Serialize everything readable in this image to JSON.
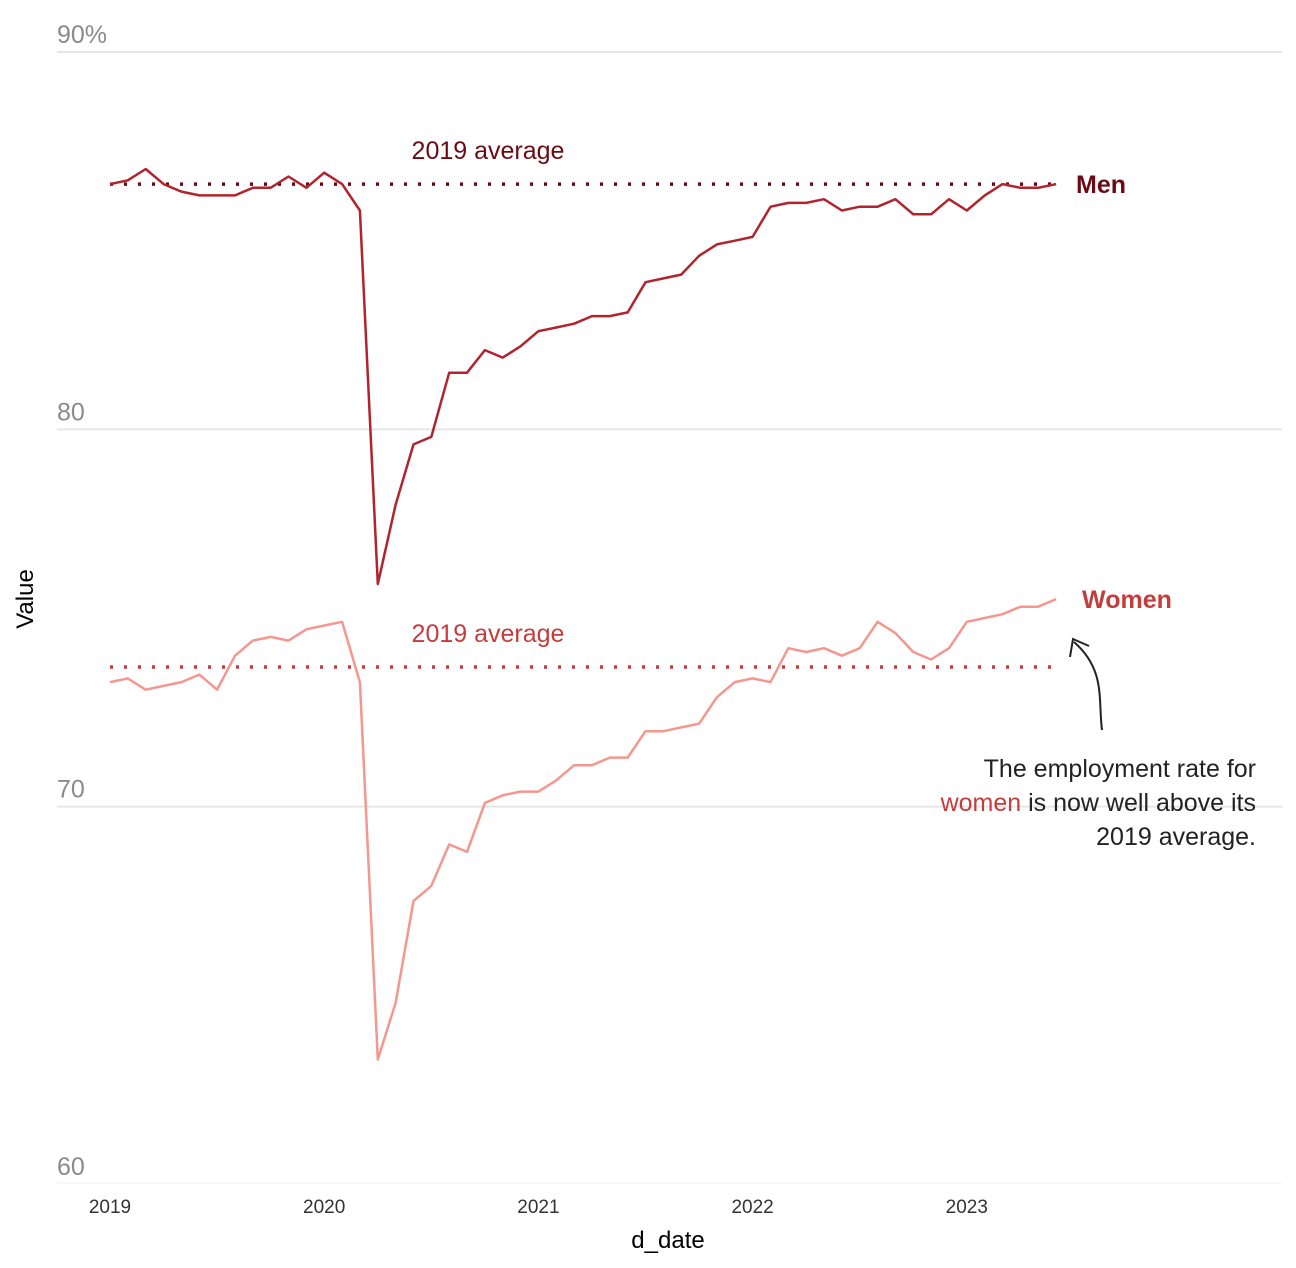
{
  "chart_data": {
    "type": "line",
    "xlabel": "d_date",
    "ylabel": "Value",
    "ylim": [
      60,
      90
    ],
    "y_ticks": [
      {
        "value": 60,
        "label": "60"
      },
      {
        "value": 70,
        "label": "70"
      },
      {
        "value": 80,
        "label": "80"
      },
      {
        "value": 90,
        "label": "90%"
      }
    ],
    "x_ticks": [
      "2019",
      "2020",
      "2021",
      "2022",
      "2023"
    ],
    "x_start": "2019-01",
    "series": [
      {
        "name": "Men",
        "color": "#b1242d",
        "label_color": "#6b0a12",
        "average": 86.5,
        "average_label": "2019 average",
        "average_color": "#6b0a12",
        "values": [
          86.5,
          86.6,
          86.9,
          86.5,
          86.3,
          86.2,
          86.2,
          86.2,
          86.4,
          86.4,
          86.7,
          86.4,
          86.8,
          86.5,
          85.8,
          75.9,
          78.0,
          79.6,
          79.8,
          81.5,
          81.5,
          82.1,
          81.9,
          82.2,
          82.6,
          82.7,
          82.8,
          83.0,
          83.0,
          83.1,
          83.9,
          84.0,
          84.1,
          84.6,
          84.9,
          85.0,
          85.1,
          85.9,
          86.0,
          86.0,
          86.1,
          85.8,
          85.9,
          85.9,
          86.1,
          85.7,
          85.7,
          86.1,
          85.8,
          86.2,
          86.5,
          86.4,
          86.4,
          86.5
        ]
      },
      {
        "name": "Women",
        "color": "#f4978e",
        "label_color": "#c43c3c",
        "average": 73.7,
        "average_label": "2019 average",
        "average_color": "#c43c3c",
        "values": [
          73.3,
          73.4,
          73.1,
          73.2,
          73.3,
          73.5,
          73.1,
          74.0,
          74.4,
          74.5,
          74.4,
          74.7,
          74.8,
          74.9,
          73.3,
          63.3,
          64.8,
          67.5,
          67.9,
          69.0,
          68.8,
          70.1,
          70.3,
          70.4,
          70.4,
          70.7,
          71.1,
          71.1,
          71.3,
          71.3,
          72.0,
          72.0,
          72.1,
          72.2,
          72.9,
          73.3,
          73.4,
          73.3,
          74.2,
          74.1,
          74.2,
          74.0,
          74.2,
          74.9,
          74.6,
          74.1,
          73.9,
          74.2,
          74.9,
          75.0,
          75.1,
          75.3,
          75.3,
          75.5
        ]
      }
    ]
  },
  "annotation": {
    "line1": "The employment rate for",
    "highlight": "women",
    "line2_rest": " is now well above its",
    "line3": "2019 average."
  }
}
